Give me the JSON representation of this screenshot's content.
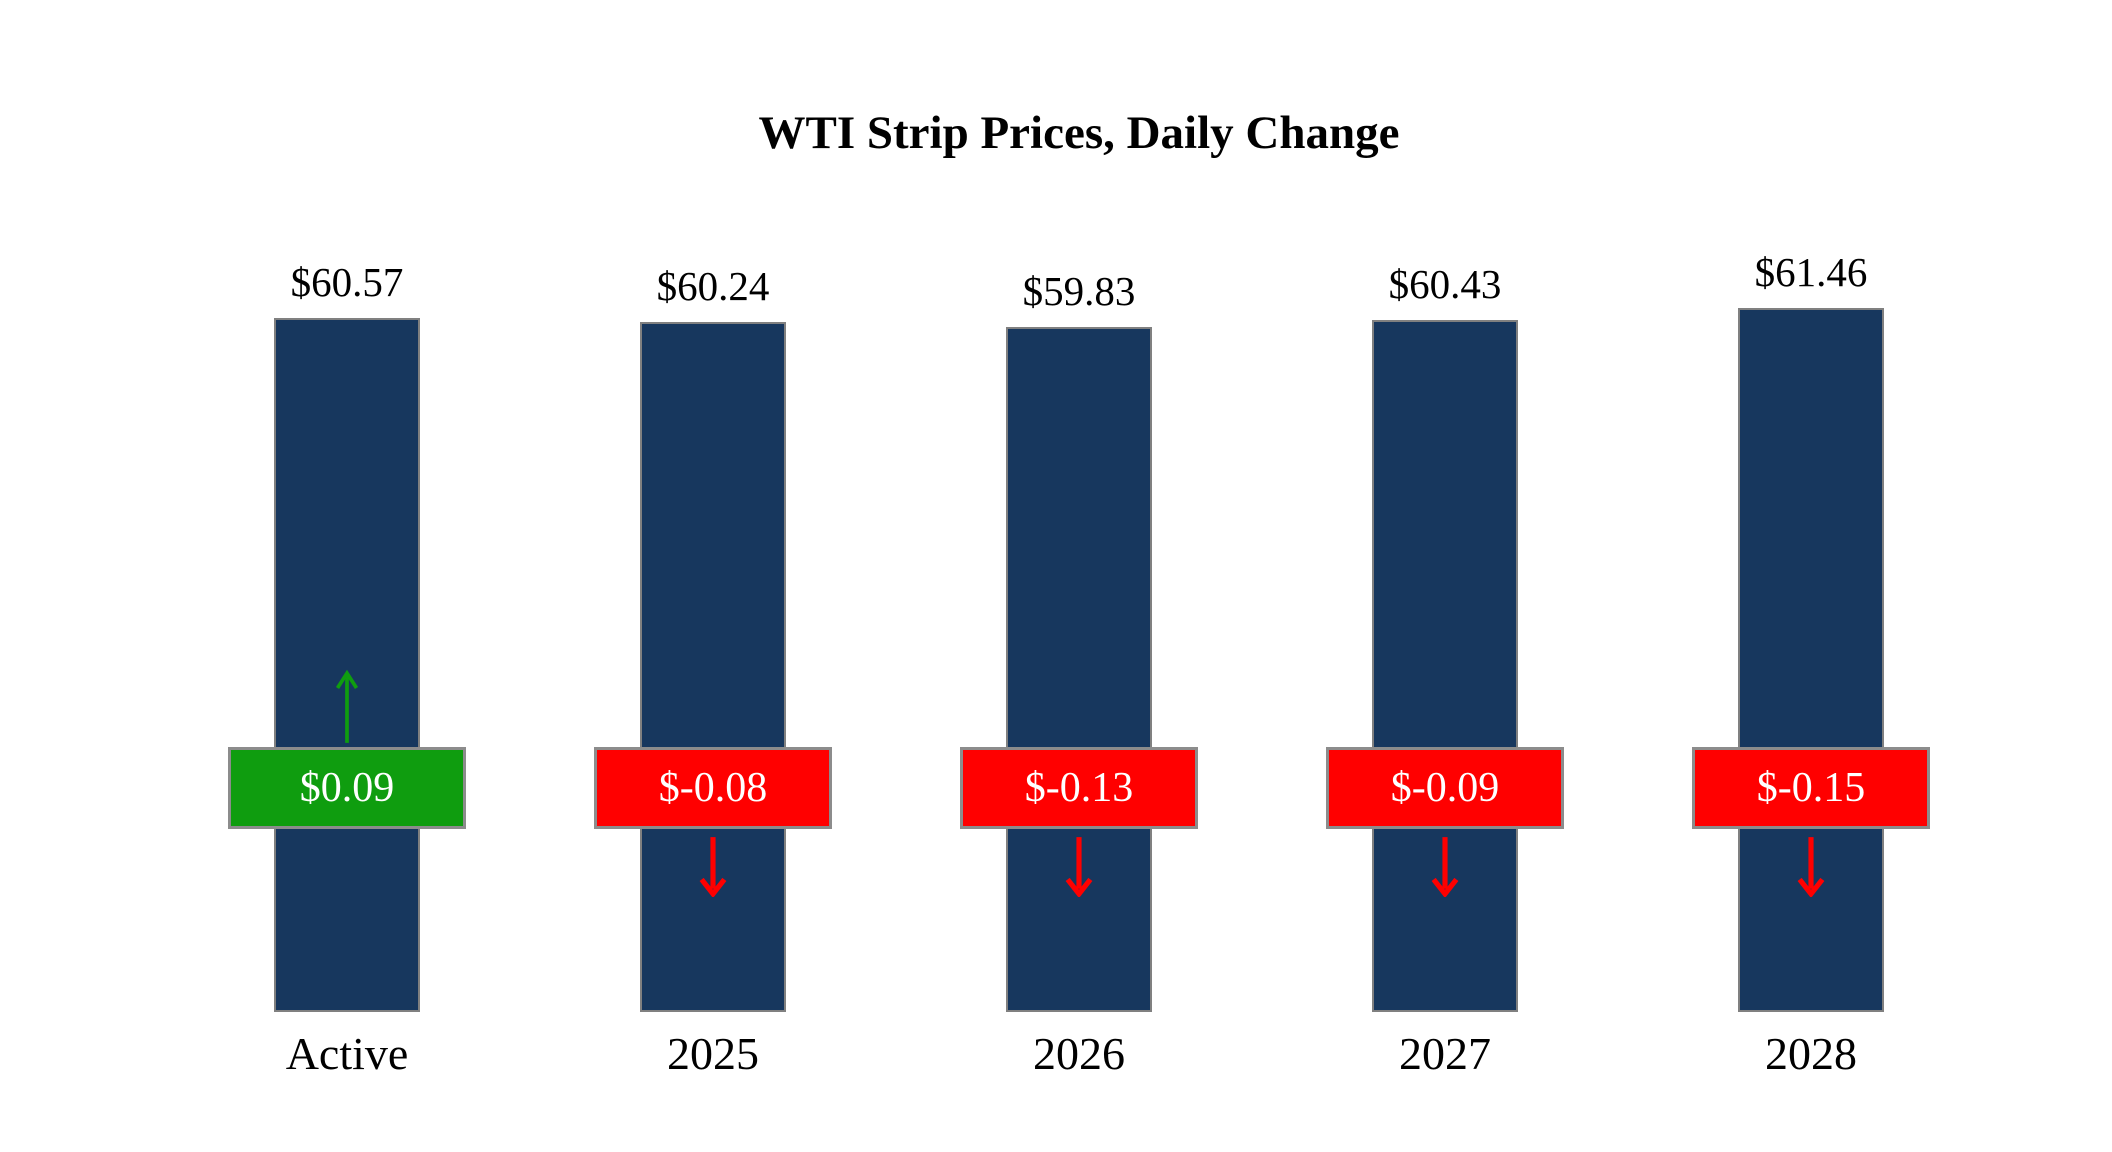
{
  "chart_data": {
    "type": "bar",
    "title": "WTI Strip Prices, Daily Change",
    "categories": [
      "Active",
      "2025",
      "2026",
      "2027",
      "2028"
    ],
    "series": [
      {
        "name": "strip_price",
        "values": [
          60.57,
          60.24,
          59.83,
          60.43,
          61.46
        ]
      },
      {
        "name": "daily_change",
        "values": [
          0.09,
          -0.08,
          -0.13,
          -0.09,
          -0.15
        ]
      }
    ],
    "price_labels": [
      "$60.57",
      "$60.24",
      "$59.83",
      "$60.43",
      "$61.46"
    ],
    "change_labels": [
      "$0.09",
      "$-0.08",
      "$-0.13",
      "$-0.09",
      "$-0.15"
    ],
    "ylim": [
      0,
      64
    ],
    "grid": false,
    "legend": "none",
    "colors": {
      "bar": "#17375E",
      "positive": "#0F9D0F",
      "negative": "#FF0000",
      "bar_border": "#808080",
      "box_border": "#8C8C8C",
      "box_text": "#FFFFFF",
      "label_text": "#000000",
      "background": "#FFFFFF"
    }
  }
}
